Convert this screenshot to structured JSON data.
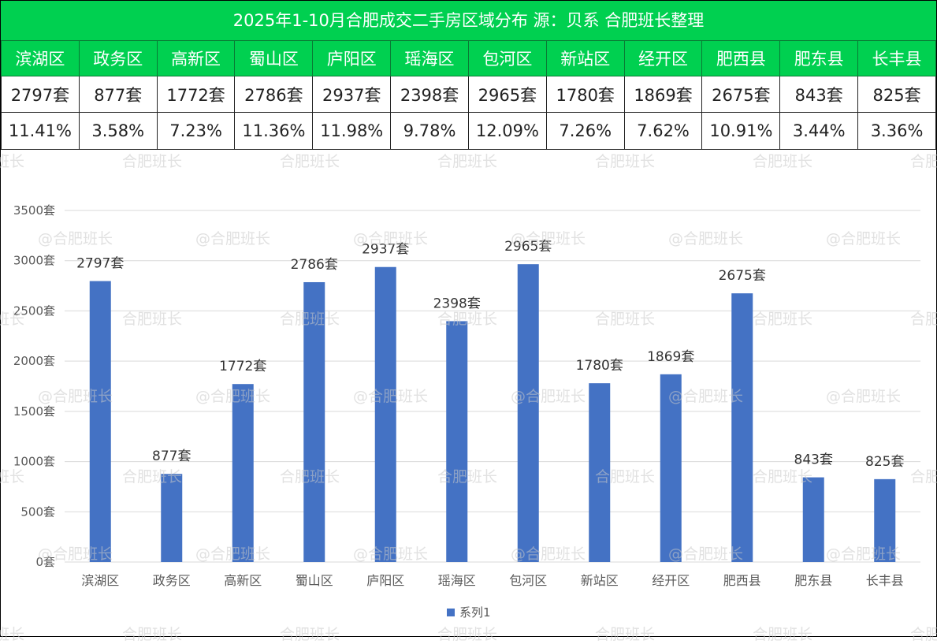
{
  "title": "2025年1-10月合肥成交二手房区域分布 源：贝系 合肥班长整理",
  "watermark": "合肥班长",
  "table": {
    "districts": [
      "滨湖区",
      "政务区",
      "高新区",
      "蜀山区",
      "庐阳区",
      "瑶海区",
      "包河区",
      "新站区",
      "经开区",
      "肥西县",
      "肥东县",
      "长丰县"
    ],
    "counts": [
      "2797套",
      "877套",
      "1772套",
      "2786套",
      "2937套",
      "2398套",
      "2965套",
      "1780套",
      "1869套",
      "2675套",
      "843套",
      "825套"
    ],
    "percents": [
      "11.41%",
      "3.58%",
      "7.23%",
      "11.36%",
      "11.98%",
      "9.78%",
      "12.09%",
      "7.26%",
      "7.62%",
      "10.91%",
      "3.44%",
      "3.36%"
    ]
  },
  "colors": {
    "header_green": "#00d050",
    "bar": "#4472c4",
    "grid": "#d9d9d9"
  },
  "chart_data": {
    "type": "bar",
    "title": "",
    "categories": [
      "滨湖区",
      "政务区",
      "高新区",
      "蜀山区",
      "庐阳区",
      "瑶海区",
      "包河区",
      "新站区",
      "经开区",
      "肥西县",
      "肥东县",
      "长丰县"
    ],
    "series": [
      {
        "name": "系列1",
        "values": [
          2797,
          877,
          1772,
          2786,
          2937,
          2398,
          2965,
          1780,
          1869,
          2675,
          843,
          825
        ]
      }
    ],
    "data_labels": [
      "2797套",
      "877套",
      "1772套",
      "2786套",
      "2937套",
      "2398套",
      "2965套",
      "1780套",
      "1869套",
      "2675套",
      "843套",
      "825套"
    ],
    "y_ticks": [
      0,
      500,
      1000,
      1500,
      2000,
      2500,
      3000,
      3500
    ],
    "y_tick_labels": [
      "0套",
      "500套",
      "1000套",
      "1500套",
      "2000套",
      "2500套",
      "3000套",
      "3500套"
    ],
    "ylim": [
      0,
      3500
    ],
    "xlabel": "",
    "ylabel": "",
    "grid": true,
    "legend": "bottom"
  }
}
